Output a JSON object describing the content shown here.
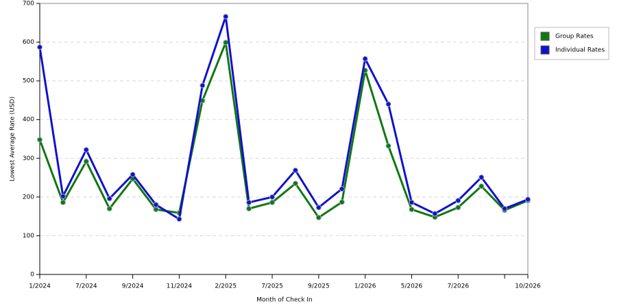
{
  "chart_data": {
    "type": "line",
    "x_label": "Month of Check In",
    "y_label": "Lowest Average Rate (USD)",
    "categories": [
      "1/2024",
      null,
      "7/2024",
      null,
      "9/2024",
      null,
      "11/2024",
      null,
      "2/2025",
      null,
      "7/2025",
      null,
      "9/2025",
      null,
      "1/2026",
      null,
      "5/2026",
      null,
      "7/2026",
      null,
      null,
      "10/2026"
    ],
    "series": [
      {
        "name": "Group Rates",
        "color": "#117711",
        "values": [
          348,
          186,
          292,
          170,
          247,
          168,
          159,
          449,
          599,
          170,
          186,
          235,
          147,
          187,
          527,
          332,
          168,
          148,
          173,
          228,
          166,
          191
        ]
      },
      {
        "name": "Individual Rates",
        "color": "#1111cc",
        "values": [
          587,
          202,
          322,
          196,
          258,
          180,
          143,
          488,
          666,
          186,
          200,
          269,
          173,
          221,
          557,
          440,
          186,
          157,
          191,
          251,
          170,
          194
        ]
      }
    ],
    "ylim": [
      0,
      700
    ],
    "yticks": [
      0,
      100,
      200,
      300,
      400,
      500,
      600,
      700
    ],
    "grid": true,
    "legend": "right"
  }
}
